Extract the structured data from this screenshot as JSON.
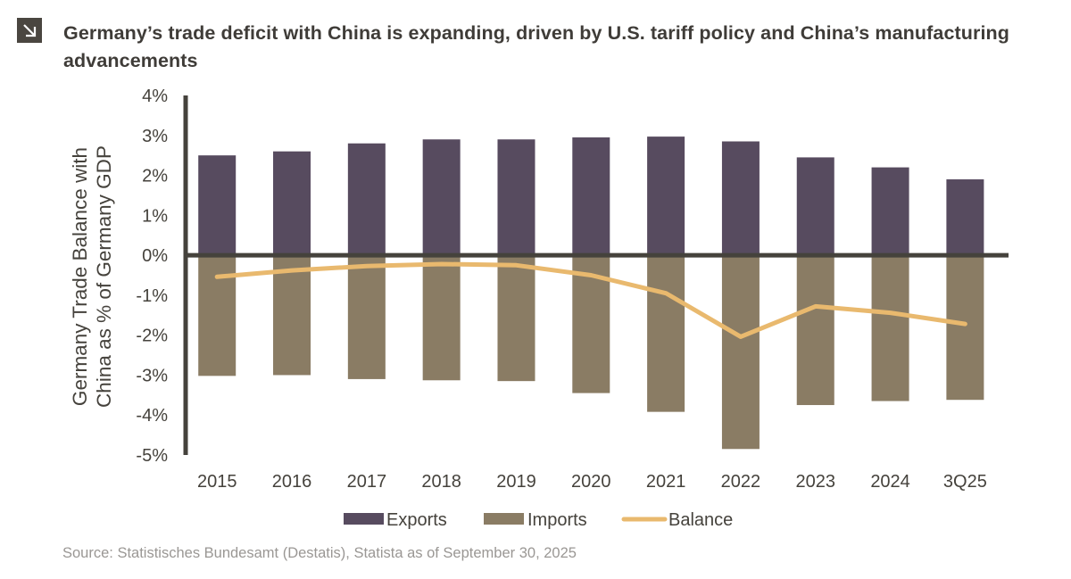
{
  "header": {
    "icon": "arrow-down-right-icon",
    "title": "Germany’s trade deficit with China is expanding, driven by U.S. tariff policy and China’s manufacturing advancements"
  },
  "colors": {
    "exports": "#574b5f",
    "imports": "#8a7c64",
    "balance": "#e9b96e",
    "axis": "#45423c",
    "text": "#45423c"
  },
  "chart_data": {
    "type": "bar",
    "title": "Germany’s trade deficit with China is expanding, driven by U.S. tariff policy and China’s manufacturing advancements",
    "xlabel": "",
    "ylabel": "Germany Trade Balance with China as % of Germany GDP",
    "ylabel_lines": [
      "Germany Trade Balance with",
      "China as % of Germany GDP"
    ],
    "ylim": [
      -5,
      4
    ],
    "yticks": [
      4,
      3,
      2,
      1,
      0,
      -1,
      -2,
      -3,
      -4,
      -5
    ],
    "ytick_labels": [
      "4%",
      "3%",
      "2%",
      "1%",
      "0%",
      "-1%",
      "-2%",
      "-3%",
      "-4%",
      "-5%"
    ],
    "grid": false,
    "legend_position": "bottom",
    "categories": [
      "2015",
      "2016",
      "2017",
      "2018",
      "2019",
      "2020",
      "2021",
      "2022",
      "2023",
      "2024",
      "3Q25"
    ],
    "series": [
      {
        "name": "Exports",
        "type": "bar",
        "values": [
          2.5,
          2.6,
          2.8,
          2.9,
          2.9,
          2.95,
          2.97,
          2.85,
          2.45,
          2.2,
          1.9
        ]
      },
      {
        "name": "Imports",
        "type": "bar",
        "values": [
          -3.02,
          -3.0,
          -3.1,
          -3.13,
          -3.15,
          -3.45,
          -3.92,
          -4.85,
          -3.75,
          -3.65,
          -3.62
        ]
      },
      {
        "name": "Balance",
        "type": "line",
        "values": [
          -0.54,
          -0.38,
          -0.27,
          -0.22,
          -0.25,
          -0.5,
          -0.95,
          -2.04,
          -1.28,
          -1.44,
          -1.72
        ]
      }
    ]
  },
  "source": "Source: Statistisches Bundesamt (Destatis), Statista as of September 30, 2025"
}
